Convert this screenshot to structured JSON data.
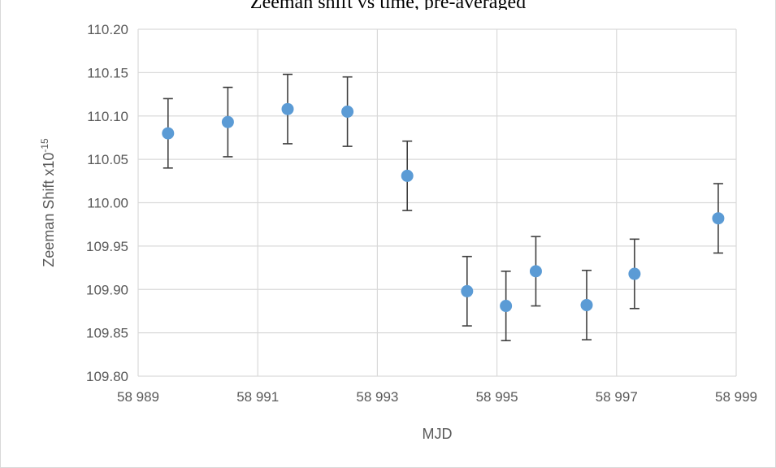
{
  "chart_data": {
    "type": "scatter",
    "title": "Zeeman shift vs time, pre-averaged",
    "xlabel": "MJD",
    "ylabel": "Zeeman Shift x10",
    "ylabel_sup": "-15",
    "xlim": [
      58989,
      58999
    ],
    "ylim": [
      109.8,
      110.2
    ],
    "x_ticks": [
      58989,
      58991,
      58993,
      58995,
      58997,
      58999
    ],
    "x_tick_labels": [
      "58 989",
      "58 991",
      "58 993",
      "58 995",
      "58 997",
      "58 999"
    ],
    "y_ticks": [
      109.8,
      109.85,
      109.9,
      109.95,
      110.0,
      110.05,
      110.1,
      110.15,
      110.2
    ],
    "y_tick_labels": [
      "109.80",
      "109.85",
      "109.90",
      "109.95",
      "110.00",
      "110.05",
      "110.10",
      "110.15",
      "110.20"
    ],
    "grid": true,
    "marker_color": "#5b9bd5",
    "errorbar_color": "#404040",
    "series": [
      {
        "x": [
          58989.5,
          58990.5,
          58991.5,
          58992.5,
          58993.5,
          58994.5,
          58995.15,
          58995.65,
          58996.5,
          58997.3,
          58998.7
        ],
        "y": [
          110.08,
          110.093,
          110.108,
          110.105,
          110.031,
          109.898,
          109.881,
          109.921,
          109.882,
          109.918,
          109.982
        ],
        "error": [
          0.04,
          0.04,
          0.04,
          0.04,
          0.04,
          0.04,
          0.04,
          0.04,
          0.04,
          0.04,
          0.04
        ]
      }
    ]
  }
}
